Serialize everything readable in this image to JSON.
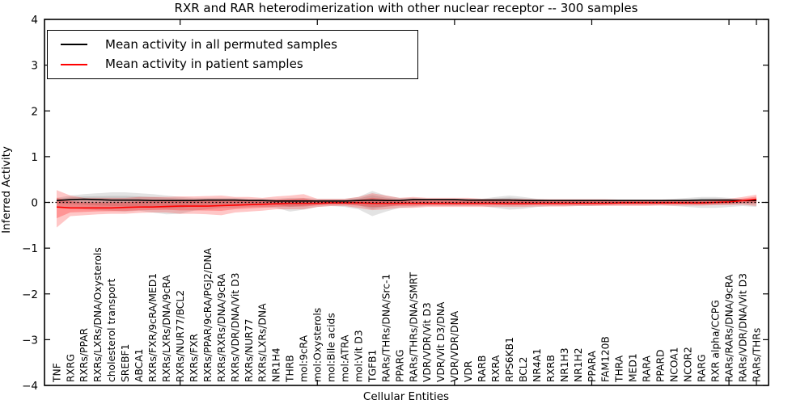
{
  "figure": {
    "title": "RXR and RAR heterodimerization with other nuclear receptor -- 300 samples",
    "xlabel": "Cellular Entities",
    "ylabel": "Inferred Activity"
  },
  "legend": [
    {
      "label": "Mean activity in all permuted samples",
      "color": "#000000"
    },
    {
      "label": "Mean activity in patient samples",
      "color": "#ff0000"
    }
  ],
  "chart_data": {
    "type": "line",
    "title": "RXR and RAR heterodimerization with other nuclear receptor -- 300 samples",
    "xlabel": "Cellular Entities",
    "ylabel": "Inferred Activity",
    "ylim": [
      -4,
      4
    ],
    "yticks": [
      4,
      3,
      2,
      1,
      0,
      -1,
      -2,
      -3,
      -4
    ],
    "ytick_labels": [
      "4",
      "3",
      "2",
      "1",
      "0",
      "−1",
      "−2",
      "−3",
      "−4"
    ],
    "xtick_entity_numbers": [
      10,
      20,
      30,
      40,
      50,
      52
    ],
    "grid": false,
    "legend_position": "upper left",
    "zero_line": {
      "value": 0,
      "style": "dotted",
      "color": "#000000"
    },
    "categories": [
      "TNF",
      "RXRG",
      "RXRs/PPAR",
      "RXRs/LXRs/DNA/Oxysterols",
      "cholesterol transport",
      "SREBF1",
      "ABCA1",
      "RXRs/FXR/9cRA/MED1",
      "RXRs/LXRs/DNA/9cRA",
      "RXRs/NUR77/BCL2",
      "RXRs/FXR",
      "RXRs/PPAR/9cRA/PGJ2/DNA",
      "RXRs/RXRs/DNA/9cRA",
      "RXRs/VDR/DNA/Vit D3",
      "RXRs/NUR77",
      "RXRs/LXRs/DNA",
      "NR1H4",
      "THRB",
      "mol:9cRA",
      "mol:Oxysterols",
      "mol:Bile acids",
      "mol:ATRA",
      "mol:Vit D3",
      "TGFB1",
      "RARs/THRs/DNA/Src-1",
      "PPARG",
      "RARs/THRs/DNA/SMRT",
      "VDR/VDR/Vit D3",
      "VDR/Vit D3/DNA",
      "VDR/VDR/DNA",
      "VDR",
      "RARB",
      "RXRA",
      "RPS6KB1",
      "BCL2",
      "NR4A1",
      "RXRB",
      "NR1H3",
      "NR1H2",
      "PPARA",
      "FAM120B",
      "THRA",
      "MED1",
      "RARA",
      "PPARD",
      "NCOA1",
      "NCOR2",
      "RARG",
      "RXR alpha/CCPG",
      "RARs/RARs/DNA/9cRA",
      "RARs/VDR/DNA/Vit D3",
      "RARs/THRs"
    ],
    "series": [
      {
        "name": "Mean activity in all permuted samples",
        "color": "#000000",
        "band_color": "#808080",
        "values": [
          0.04,
          0.06,
          0.07,
          0.06,
          0.05,
          0.05,
          0.05,
          0.04,
          0.04,
          0.04,
          0.04,
          0.05,
          0.05,
          0.05,
          0.04,
          0.04,
          0.03,
          0.03,
          0.03,
          0.03,
          0.03,
          0.03,
          0.04,
          0.05,
          0.04,
          0.04,
          0.06,
          0.06,
          0.06,
          0.06,
          0.05,
          0.05,
          0.05,
          0.05,
          0.04,
          0.04,
          0.04,
          0.04,
          0.04,
          0.04,
          0.04,
          0.04,
          0.04,
          0.04,
          0.04,
          0.04,
          0.04,
          0.05,
          0.05,
          0.05,
          0.04,
          0.04
        ],
        "band_upper": [
          0.1,
          0.15,
          0.18,
          0.2,
          0.22,
          0.22,
          0.2,
          0.18,
          0.15,
          0.12,
          0.1,
          0.1,
          0.1,
          0.1,
          0.08,
          0.08,
          0.08,
          0.1,
          0.1,
          0.08,
          0.08,
          0.08,
          0.12,
          0.25,
          0.15,
          0.1,
          0.1,
          0.08,
          0.08,
          0.08,
          0.08,
          0.08,
          0.12,
          0.15,
          0.12,
          0.08,
          0.06,
          0.06,
          0.06,
          0.06,
          0.06,
          0.06,
          0.06,
          0.06,
          0.06,
          0.08,
          0.1,
          0.12,
          0.12,
          0.1,
          0.07,
          0.07
        ],
        "band_lower": [
          -0.08,
          -0.12,
          -0.15,
          -0.17,
          -0.18,
          -0.2,
          -0.18,
          -0.22,
          -0.26,
          -0.25,
          -0.18,
          -0.15,
          -0.12,
          -0.12,
          -0.1,
          -0.1,
          -0.12,
          -0.2,
          -0.16,
          -0.1,
          -0.08,
          -0.1,
          -0.15,
          -0.3,
          -0.2,
          -0.12,
          -0.1,
          -0.08,
          -0.08,
          -0.08,
          -0.08,
          -0.08,
          -0.12,
          -0.16,
          -0.14,
          -0.1,
          -0.08,
          -0.08,
          -0.08,
          -0.08,
          -0.06,
          -0.06,
          -0.06,
          -0.06,
          -0.06,
          -0.08,
          -0.1,
          -0.12,
          -0.12,
          -0.1,
          -0.08,
          -0.1
        ]
      },
      {
        "name": "Mean activity in patient samples",
        "color": "#ff0000",
        "band_color": "#ff0000",
        "values": [
          -0.1,
          -0.12,
          -0.12,
          -0.12,
          -0.12,
          -0.11,
          -0.1,
          -0.1,
          -0.09,
          -0.08,
          -0.08,
          -0.08,
          -0.07,
          -0.06,
          -0.05,
          -0.04,
          -0.03,
          -0.02,
          -0.02,
          -0.02,
          -0.01,
          -0.01,
          -0.01,
          -0.02,
          -0.02,
          -0.02,
          -0.02,
          -0.02,
          -0.02,
          -0.02,
          -0.02,
          -0.02,
          -0.02,
          -0.02,
          -0.02,
          -0.02,
          -0.02,
          -0.02,
          -0.02,
          -0.02,
          -0.02,
          -0.01,
          -0.01,
          -0.01,
          -0.01,
          -0.01,
          -0.01,
          -0.01,
          0.0,
          0.01,
          0.04,
          0.07
        ],
        "band_upper": [
          0.27,
          0.15,
          0.1,
          0.1,
          0.1,
          0.1,
          0.12,
          0.12,
          0.12,
          0.13,
          0.13,
          0.14,
          0.15,
          0.12,
          0.12,
          0.1,
          0.13,
          0.15,
          0.18,
          0.08,
          0.08,
          0.08,
          0.12,
          0.2,
          0.15,
          0.1,
          0.12,
          0.1,
          0.1,
          0.1,
          0.1,
          0.08,
          0.08,
          0.08,
          0.08,
          0.07,
          0.07,
          0.07,
          0.07,
          0.07,
          0.07,
          0.06,
          0.06,
          0.06,
          0.06,
          0.06,
          0.06,
          0.06,
          0.07,
          0.08,
          0.12,
          0.17
        ],
        "band_lower": [
          -0.55,
          -0.3,
          -0.28,
          -0.26,
          -0.25,
          -0.25,
          -0.23,
          -0.22,
          -0.22,
          -0.25,
          -0.25,
          -0.26,
          -0.28,
          -0.22,
          -0.2,
          -0.18,
          -0.15,
          -0.15,
          -0.15,
          -0.1,
          -0.08,
          -0.08,
          -0.12,
          -0.17,
          -0.15,
          -0.12,
          -0.12,
          -0.1,
          -0.1,
          -0.1,
          -0.1,
          -0.1,
          -0.1,
          -0.1,
          -0.1,
          -0.09,
          -0.09,
          -0.09,
          -0.08,
          -0.08,
          -0.08,
          -0.08,
          -0.08,
          -0.08,
          -0.07,
          -0.07,
          -0.07,
          -0.07,
          -0.06,
          -0.06,
          -0.05,
          -0.08
        ]
      }
    ]
  }
}
